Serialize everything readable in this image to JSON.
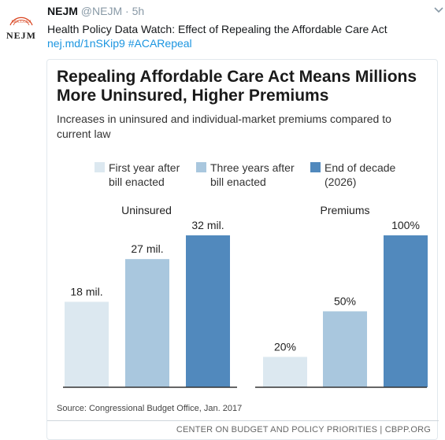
{
  "tweet": {
    "display_name": "NEJM",
    "handle": "@NEJM",
    "separator": "·",
    "time": "5h",
    "text": "Health Policy Data Watch: Effect of Repealing the Affordable Care Act",
    "link": "nej.md/1nSKip9",
    "hashtag": "#ACARepeal",
    "avatar_label": "NEJM",
    "avatar_seal_text": "MDCCCXII",
    "menu_icon": "chevron-down-icon"
  },
  "card": {
    "title_line1": "Repealing Affordable Care Act Means Millions",
    "title_line2": "More Uninsured, Higher Premiums",
    "subtitle": "Increases in uninsured and individual-market premiums compared to current law",
    "source": "Source: Congressional Budget Office, Jan. 2017",
    "footer": "CENTER ON BUDGET AND POLICY PRIORITIES | CBPP.ORG"
  },
  "colors": {
    "series1": "#dce8f0",
    "series2": "#a9c7de",
    "series3": "#5189bd",
    "link": "#1b95e0",
    "muted": "#8899a6"
  },
  "chart_data": [
    {
      "type": "bar",
      "title": "Uninsured",
      "categories": [
        "First year after bill enacted",
        "Three years after bill enacted",
        "End of decade (2026)"
      ],
      "values": [
        18,
        27,
        32
      ],
      "data_labels": [
        "18 mil.",
        "27 mil.",
        "32 mil."
      ],
      "ylim": [
        0,
        32
      ]
    },
    {
      "type": "bar",
      "title": "Premiums",
      "categories": [
        "First year after bill enacted",
        "Three years after bill enacted",
        "End of decade (2026)"
      ],
      "values": [
        20,
        50,
        100
      ],
      "data_labels": [
        "20%",
        "50%",
        "100%"
      ],
      "ylim": [
        0,
        100
      ]
    }
  ],
  "legend": [
    {
      "line1": "First year after",
      "line2": "bill enacted"
    },
    {
      "line1": "Three years after",
      "line2": "bill enacted"
    },
    {
      "line1": "End of decade",
      "line2": "(2026)"
    }
  ]
}
